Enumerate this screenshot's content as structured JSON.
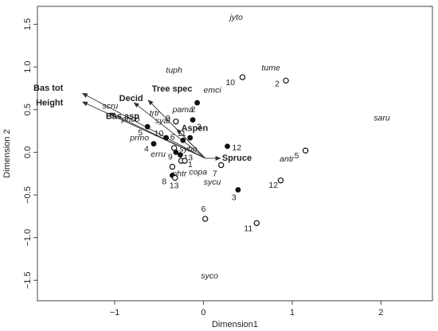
{
  "chart_data": {
    "type": "scatter",
    "xlabel": "Dimension1",
    "ylabel": "Dimension 2",
    "xlim": [
      -1.87,
      2.58
    ],
    "ylim": [
      -1.74,
      1.71
    ],
    "xticks": [
      -1,
      0,
      1,
      2
    ],
    "yticks": [
      -1.5,
      -1.0,
      -0.5,
      0.0,
      0.5,
      1.0,
      1.5
    ],
    "xtick_labels": [
      "−1",
      "0",
      "1",
      "2"
    ],
    "ytick_labels": [
      "−1.5",
      "−1.0",
      "−0.5",
      "0.0",
      "0.5",
      "1.0",
      "1.5"
    ],
    "grid": false,
    "series": [
      {
        "marker": "filled-circle",
        "points": [
          {
            "label": "2",
            "x": -0.07,
            "y": 0.58
          },
          {
            "label": "3",
            "x": -0.12,
            "y": 0.38
          },
          {
            "label": "12",
            "x": 0.27,
            "y": 0.07
          },
          {
            "label": "3",
            "x": 0.39,
            "y": -0.44
          },
          {
            "label": "5",
            "x": -0.63,
            "y": 0.3
          },
          {
            "label": "10",
            "x": -0.42,
            "y": 0.17
          },
          {
            "label": "4",
            "x": -0.56,
            "y": 0.1
          },
          {
            "label": "11",
            "x": -0.15,
            "y": 0.17
          },
          {
            "label": "6",
            "x": -0.23,
            "y": 0.14
          },
          {
            "label": "9",
            "x": -0.31,
            "y": 0.0
          },
          {
            "label": "13",
            "x": -0.26,
            "y": -0.03
          },
          {
            "label": "8",
            "x": -0.35,
            "y": -0.27
          }
        ]
      },
      {
        "marker": "open-circle",
        "points": [
          {
            "label": "10",
            "x": 0.44,
            "y": 0.88
          },
          {
            "label": "2",
            "x": 0.93,
            "y": 0.84
          },
          {
            "label": "8",
            "x": -0.31,
            "y": 0.36
          },
          {
            "label": "5",
            "x": 1.15,
            "y": 0.02
          },
          {
            "label": "7",
            "x": 0.2,
            "y": -0.15
          },
          {
            "label": "12",
            "x": 0.87,
            "y": -0.33
          },
          {
            "label": "6",
            "x": 0.02,
            "y": -0.78
          },
          {
            "label": "11",
            "x": 0.6,
            "y": -0.83
          },
          {
            "label": "",
            "x": -0.33,
            "y": 0.05
          },
          {
            "label": "",
            "x": -0.25,
            "y": -0.1
          },
          {
            "label": "1",
            "x": -0.21,
            "y": -0.1
          },
          {
            "label": "",
            "x": -0.35,
            "y": -0.17
          },
          {
            "label": "13",
            "x": -0.32,
            "y": -0.3
          }
        ]
      }
    ],
    "species_labels": [
      {
        "text": "jyto",
        "x": 0.37,
        "y": 1.55
      },
      {
        "text": "tume",
        "x": 0.76,
        "y": 0.96
      },
      {
        "text": "tuph",
        "x": -0.33,
        "y": 0.93
      },
      {
        "text": "emci",
        "x": 0.1,
        "y": 0.7
      },
      {
        "text": "pama",
        "x": -0.23,
        "y": 0.47
      },
      {
        "text": "saru",
        "x": 2.01,
        "y": 0.37
      },
      {
        "text": "trtr",
        "x": -0.55,
        "y": 0.43
      },
      {
        "text": "syal",
        "x": -0.46,
        "y": 0.34
      },
      {
        "text": "scru",
        "x": -1.05,
        "y": 0.51
      },
      {
        "text": "phco",
        "x": -0.82,
        "y": 0.36
      },
      {
        "text": "prmo",
        "x": -0.72,
        "y": 0.14
      },
      {
        "text": "erru",
        "x": -0.51,
        "y": -0.05
      },
      {
        "text": "sybo",
        "x": -0.17,
        "y": 0.01
      },
      {
        "text": "antr",
        "x": 0.94,
        "y": -0.11
      },
      {
        "text": "copa",
        "x": -0.06,
        "y": -0.26
      },
      {
        "text": "sycu",
        "x": 0.1,
        "y": -0.38
      },
      {
        "text": "phtr",
        "x": -0.27,
        "y": -0.28
      },
      {
        "text": "syco",
        "x": 0.07,
        "y": -1.48
      }
    ],
    "vectors": [
      {
        "label": "Bas tot",
        "x": -1.36,
        "y": 0.69,
        "lx": -1.58,
        "ly": 0.72,
        "anchor": "end"
      },
      {
        "label": "Height",
        "x": -1.36,
        "y": 0.59,
        "lx": -1.58,
        "ly": 0.55,
        "anchor": "end"
      },
      {
        "label": "Bas asp",
        "x": -1.05,
        "y": 0.46,
        "lx": -1.1,
        "ly": 0.39,
        "anchor": "start"
      },
      {
        "label": "Tree spec",
        "x": -0.62,
        "y": 0.61,
        "lx": -0.58,
        "ly": 0.71,
        "anchor": "start"
      },
      {
        "label": "Decid",
        "x": -0.78,
        "y": 0.58,
        "lx": -0.68,
        "ly": 0.6,
        "anchor": "end"
      },
      {
        "label": "Aspen",
        "x": -0.3,
        "y": 0.27,
        "lx": -0.25,
        "ly": 0.25,
        "anchor": "start"
      },
      {
        "label": "Spruce",
        "x": 0.19,
        "y": -0.07,
        "lx": 0.21,
        "ly": -0.1,
        "anchor": "start"
      }
    ],
    "vector_origin": {
      "x": 0.02,
      "y": -0.07
    }
  }
}
